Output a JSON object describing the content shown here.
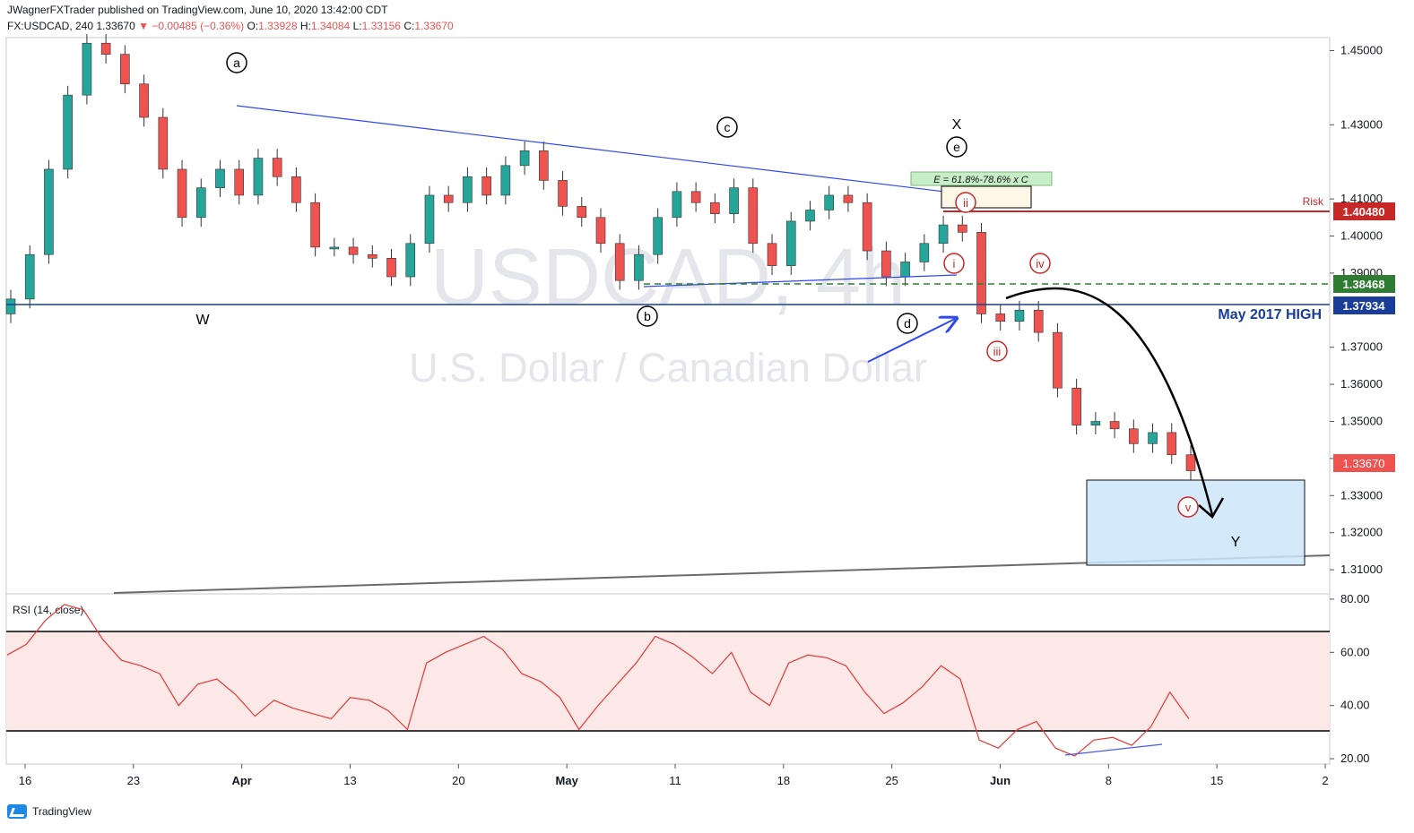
{
  "header": {
    "publisher_line": "JWagnerFXTrader published on TradingView.com, June 10, 2020 13:42:00 CDT",
    "symbol": "FX:USDCAD, 240",
    "last": "1.33670",
    "change": "−0.00485 (−0.36%)",
    "o_label": "O:",
    "o": "1.33928",
    "h_label": "H:",
    "h": "1.34084",
    "l_label": "L:",
    "l": "1.33156",
    "c_label": "C:",
    "c": "1.33670"
  },
  "watermark": {
    "symbol": "USDCAD, 4h",
    "name": "U.S. Dollar / Canadian Dollar"
  },
  "footer": {
    "brand": "TradingView"
  },
  "colors": {
    "up": "#26a69a",
    "down": "#ef5350",
    "candle": "#333333",
    "resistance": "#1a3d99",
    "risk": "#c62828",
    "target_zone": "#cce5f8",
    "rsi": "#e53935",
    "rsi_band": "#fde8e8"
  },
  "chart_data": [
    {
      "type": "line",
      "title": "USDCAD, 4h",
      "subtitle": "U.S. Dollar / Canadian Dollar",
      "ylim": [
        1.3035,
        1.4535
      ],
      "y_ticks": [
        "1.45000",
        "1.43000",
        "1.41000",
        "1.40000",
        "1.39000",
        "1.37000",
        "1.36000",
        "1.35000",
        "1.34000",
        "1.33000",
        "1.32000",
        "1.31000"
      ],
      "x_tick_labels": [
        "16",
        "23",
        "Apr",
        "13",
        "20",
        "May",
        "11",
        "18",
        "25",
        "Jun",
        "8",
        "15",
        "2"
      ],
      "series": [
        {
          "name": "",
          "x": [
            "Mar 16",
            "Mar 17",
            "Mar 18",
            "Mar 19",
            "Mar 20",
            "Mar 23",
            "Mar 24",
            "Mar 25",
            "Mar 26",
            "Mar 27",
            "Mar 30",
            "Mar 31",
            "Apr 1",
            "Apr 2",
            "Apr 3",
            "Apr 6",
            "Apr 7",
            "Apr 8",
            "Apr 9",
            "Apr 10",
            "Apr 13",
            "Apr 14",
            "Apr 15",
            "Apr 16",
            "Apr 17",
            "Apr 20",
            "Apr 21",
            "Apr 22",
            "Apr 23",
            "Apr 24",
            "Apr 27",
            "Apr 28",
            "Apr 29",
            "Apr 30",
            "May 1",
            "May 4",
            "May 5",
            "May 6",
            "May 7",
            "May 8",
            "May 11",
            "May 12",
            "May 13",
            "May 14",
            "May 15",
            "May 18",
            "May 19",
            "May 20",
            "May 21",
            "May 22",
            "May 25",
            "May 26",
            "May 27",
            "May 28",
            "May 29",
            "Jun 1",
            "Jun 2",
            "Jun 3",
            "Jun 4",
            "Jun 5",
            "Jun 8",
            "Jun 9",
            "Jun 10"
          ],
          "values": [
            1.383,
            1.395,
            1.418,
            1.438,
            1.452,
            1.449,
            1.441,
            1.432,
            1.418,
            1.405,
            1.413,
            1.418,
            1.411,
            1.421,
            1.416,
            1.409,
            1.397,
            1.397,
            1.395,
            1.394,
            1.389,
            1.398,
            1.411,
            1.409,
            1.416,
            1.411,
            1.419,
            1.423,
            1.415,
            1.408,
            1.405,
            1.398,
            1.388,
            1.395,
            1.405,
            1.412,
            1.409,
            1.406,
            1.413,
            1.398,
            1.392,
            1.404,
            1.407,
            1.411,
            1.409,
            1.396,
            1.389,
            1.393,
            1.398,
            1.403,
            1.401,
            1.379,
            1.377,
            1.38,
            1.374,
            1.359,
            1.349,
            1.35,
            1.348,
            1.344,
            1.347,
            1.341,
            1.3367
          ]
        }
      ],
      "price_labels": [
        {
          "label": "Risk",
          "value": "1.40480"
        },
        {
          "label": "",
          "value": "1.38468"
        },
        {
          "label": "May 2017 HIGH",
          "value": "1.37934"
        },
        {
          "label": "",
          "value": "1.33670"
        }
      ],
      "annotations": {
        "waves_major": [
          "a",
          "b",
          "c",
          "d",
          "e"
        ],
        "waves_minor": [
          "i",
          "ii",
          "iii",
          "iv",
          "v"
        ],
        "labels": [
          "W",
          "X",
          "Y"
        ],
        "projection": "E = 61.8%-78.6% x C"
      }
    },
    {
      "type": "line",
      "title": "RSI (14, close)",
      "ylim": [
        18,
        82
      ],
      "y_ticks": [
        "80.00",
        "60.00",
        "40.00",
        "20.00"
      ],
      "levels": [
        70,
        30
      ],
      "values": [
        59,
        63,
        72,
        78,
        76,
        65,
        57,
        55,
        52,
        40,
        48,
        50,
        44,
        36,
        42,
        39,
        37,
        35,
        43,
        42,
        38,
        31,
        56,
        60,
        63,
        66,
        61,
        52,
        49,
        43,
        31,
        40,
        48,
        56,
        66,
        63,
        58,
        52,
        60,
        45,
        40,
        56,
        59,
        58,
        55,
        45,
        37,
        41,
        47,
        55,
        50,
        27,
        24,
        31,
        34,
        24,
        21,
        27,
        28,
        25,
        32,
        45,
        35
      ]
    }
  ]
}
